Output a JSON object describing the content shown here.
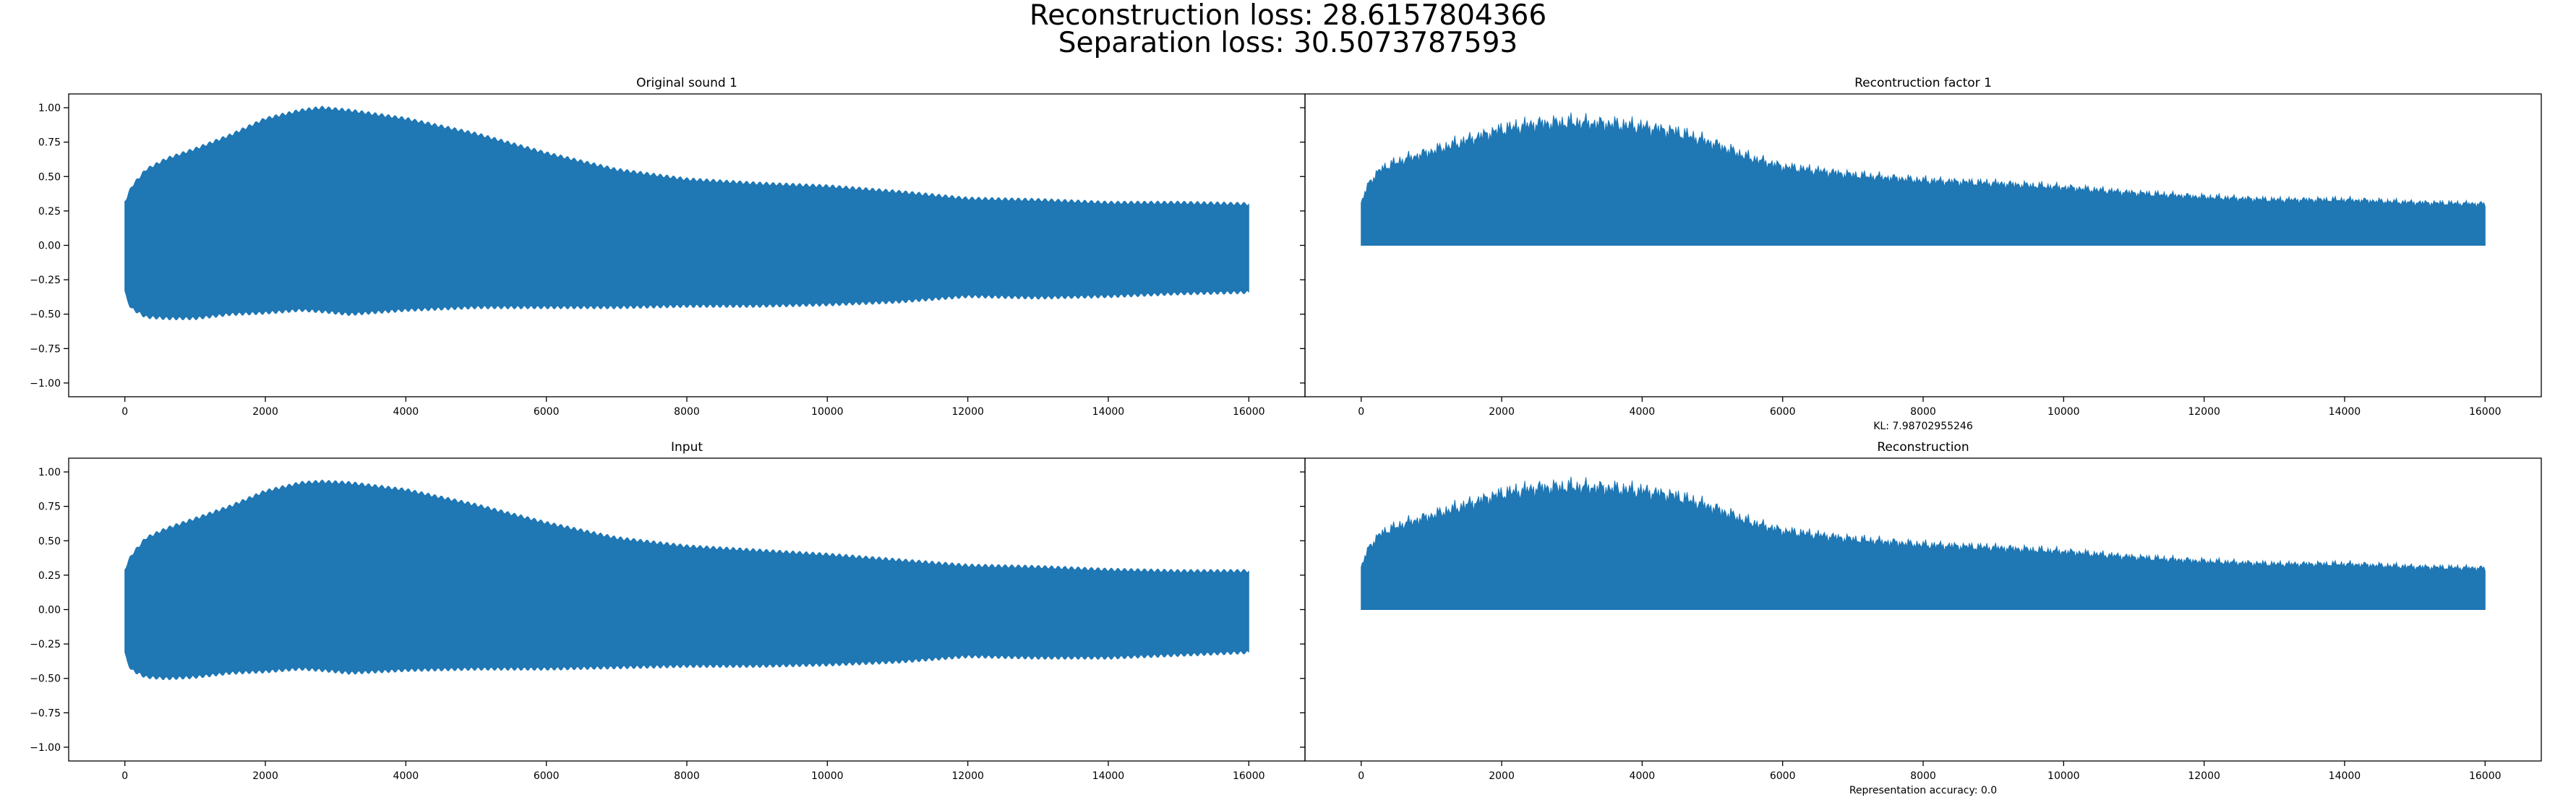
{
  "figure": {
    "suptitle_line1": "Reconstruction loss: 28.6157804366",
    "suptitle_line2": "Separation loss: 30.5073787593"
  },
  "colors": {
    "series": "#1f77b4",
    "axes": "#000000",
    "background": "#ffffff"
  },
  "chart_data": [
    {
      "type": "area",
      "title": "Original sound 1",
      "xlabel": "",
      "ylabel": "",
      "xlim": [
        -800,
        16800
      ],
      "ylim": [
        -1.1,
        1.1
      ],
      "xticks": [
        0,
        2000,
        4000,
        6000,
        8000,
        10000,
        12000,
        14000,
        16000
      ],
      "xtick_labels": [
        "0",
        "2000",
        "4000",
        "6000",
        "8000",
        "10000",
        "12000",
        "14000",
        "16000"
      ],
      "yticks": [
        1.0,
        0.75,
        0.5,
        0.25,
        0.0,
        -0.25,
        -0.5,
        -0.75,
        -1.0
      ],
      "ytick_labels": [
        "1.00",
        "0.75",
        "0.50",
        "0.25",
        "0.00",
        "−0.25",
        "−0.50",
        "−0.75",
        "−1.00"
      ],
      "grid": false,
      "envelope": {
        "x": [
          0,
          30,
          100,
          300,
          600,
          1000,
          1500,
          2000,
          2500,
          2800,
          3200,
          4000,
          5000,
          6000,
          7000,
          8000,
          9000,
          10000,
          11000,
          12000,
          13000,
          14000,
          15000,
          16000
        ],
        "upper": [
          0.32,
          0.35,
          0.43,
          0.55,
          0.63,
          0.7,
          0.8,
          0.92,
          0.98,
          1.0,
          0.98,
          0.92,
          0.81,
          0.67,
          0.55,
          0.48,
          0.45,
          0.43,
          0.39,
          0.34,
          0.33,
          0.31,
          0.31,
          0.3
        ],
        "lower": [
          -0.33,
          -0.4,
          -0.46,
          -0.52,
          -0.53,
          -0.53,
          -0.5,
          -0.49,
          -0.47,
          -0.48,
          -0.5,
          -0.47,
          -0.45,
          -0.45,
          -0.45,
          -0.44,
          -0.44,
          -0.43,
          -0.41,
          -0.37,
          -0.38,
          -0.37,
          -0.35,
          -0.34
        ]
      }
    },
    {
      "type": "area",
      "title": "Recontruction factor 1",
      "xlabel": "KL: 7.98702955246",
      "ylabel": "",
      "xlim": [
        -800,
        16800
      ],
      "ylim": [
        -1.1,
        1.1
      ],
      "xticks": [
        0,
        2000,
        4000,
        6000,
        8000,
        10000,
        12000,
        14000,
        16000
      ],
      "xtick_labels": [
        "0",
        "2000",
        "4000",
        "6000",
        "8000",
        "10000",
        "12000",
        "14000",
        "16000"
      ],
      "grid": false,
      "envelope": {
        "x": [
          0,
          30,
          100,
          300,
          600,
          1000,
          1500,
          2000,
          2500,
          3000,
          3500,
          4000,
          4500,
          5000,
          5500,
          6000,
          7000,
          8000,
          9000,
          10000,
          11000,
          12000,
          13000,
          14000,
          15000,
          16000
        ],
        "upper": [
          0.3,
          0.34,
          0.45,
          0.56,
          0.62,
          0.68,
          0.76,
          0.84,
          0.88,
          0.89,
          0.88,
          0.86,
          0.82,
          0.74,
          0.64,
          0.57,
          0.51,
          0.47,
          0.45,
          0.42,
          0.38,
          0.35,
          0.33,
          0.33,
          0.31,
          0.3
        ],
        "lower": [
          0,
          0,
          0,
          0,
          0,
          0,
          0,
          0,
          0,
          0,
          0,
          0,
          0,
          0,
          0,
          0,
          0,
          0,
          0,
          0,
          0,
          0,
          0,
          0,
          0,
          0
        ]
      }
    },
    {
      "type": "area",
      "title": "Input",
      "xlabel": "",
      "ylabel": "",
      "xlim": [
        -800,
        16800
      ],
      "ylim": [
        -1.1,
        1.1
      ],
      "xticks": [
        0,
        2000,
        4000,
        6000,
        8000,
        10000,
        12000,
        14000,
        16000
      ],
      "xtick_labels": [
        "0",
        "2000",
        "4000",
        "6000",
        "8000",
        "10000",
        "12000",
        "14000",
        "16000"
      ],
      "yticks": [
        1.0,
        0.75,
        0.5,
        0.25,
        0.0,
        -0.25,
        -0.5,
        -0.75,
        -1.0
      ],
      "ytick_labels": [
        "1.00",
        "0.75",
        "0.50",
        "0.25",
        "0.00",
        "−0.25",
        "−0.50",
        "−0.75",
        "−1.00"
      ],
      "grid": false,
      "envelope": {
        "x": [
          0,
          30,
          100,
          300,
          600,
          1000,
          1500,
          2000,
          2500,
          2800,
          3200,
          4000,
          5000,
          6000,
          7000,
          8000,
          9000,
          10000,
          11000,
          12000,
          13000,
          14000,
          15000,
          16000
        ],
        "upper": [
          0.29,
          0.33,
          0.4,
          0.52,
          0.59,
          0.66,
          0.75,
          0.86,
          0.92,
          0.93,
          0.92,
          0.87,
          0.76,
          0.63,
          0.52,
          0.46,
          0.43,
          0.4,
          0.36,
          0.32,
          0.31,
          0.29,
          0.28,
          0.28
        ],
        "lower": [
          -0.31,
          -0.38,
          -0.44,
          -0.49,
          -0.5,
          -0.49,
          -0.46,
          -0.45,
          -0.43,
          -0.44,
          -0.46,
          -0.44,
          -0.43,
          -0.43,
          -0.42,
          -0.41,
          -0.41,
          -0.4,
          -0.38,
          -0.34,
          -0.35,
          -0.35,
          -0.33,
          -0.31
        ]
      }
    },
    {
      "type": "area",
      "title": "Reconstruction",
      "xlabel": "Representation accuracy: 0.0",
      "ylabel": "",
      "xlim": [
        -800,
        16800
      ],
      "ylim": [
        -1.1,
        1.1
      ],
      "xticks": [
        0,
        2000,
        4000,
        6000,
        8000,
        10000,
        12000,
        14000,
        16000
      ],
      "xtick_labels": [
        "0",
        "2000",
        "4000",
        "6000",
        "8000",
        "10000",
        "12000",
        "14000",
        "16000"
      ],
      "grid": false,
      "envelope": {
        "x": [
          0,
          30,
          100,
          300,
          600,
          1000,
          1500,
          2000,
          2500,
          3000,
          3500,
          4000,
          4500,
          5000,
          5500,
          6000,
          7000,
          8000,
          9000,
          10000,
          11000,
          12000,
          13000,
          14000,
          15000,
          16000
        ],
        "upper": [
          0.3,
          0.34,
          0.45,
          0.56,
          0.62,
          0.68,
          0.76,
          0.84,
          0.88,
          0.89,
          0.88,
          0.86,
          0.82,
          0.74,
          0.64,
          0.57,
          0.51,
          0.47,
          0.45,
          0.42,
          0.38,
          0.35,
          0.33,
          0.33,
          0.31,
          0.3
        ],
        "lower": [
          0,
          0,
          0,
          0,
          0,
          0,
          0,
          0,
          0,
          0,
          0,
          0,
          0,
          0,
          0,
          0,
          0,
          0,
          0,
          0,
          0,
          0,
          0,
          0,
          0,
          0
        ]
      }
    }
  ]
}
